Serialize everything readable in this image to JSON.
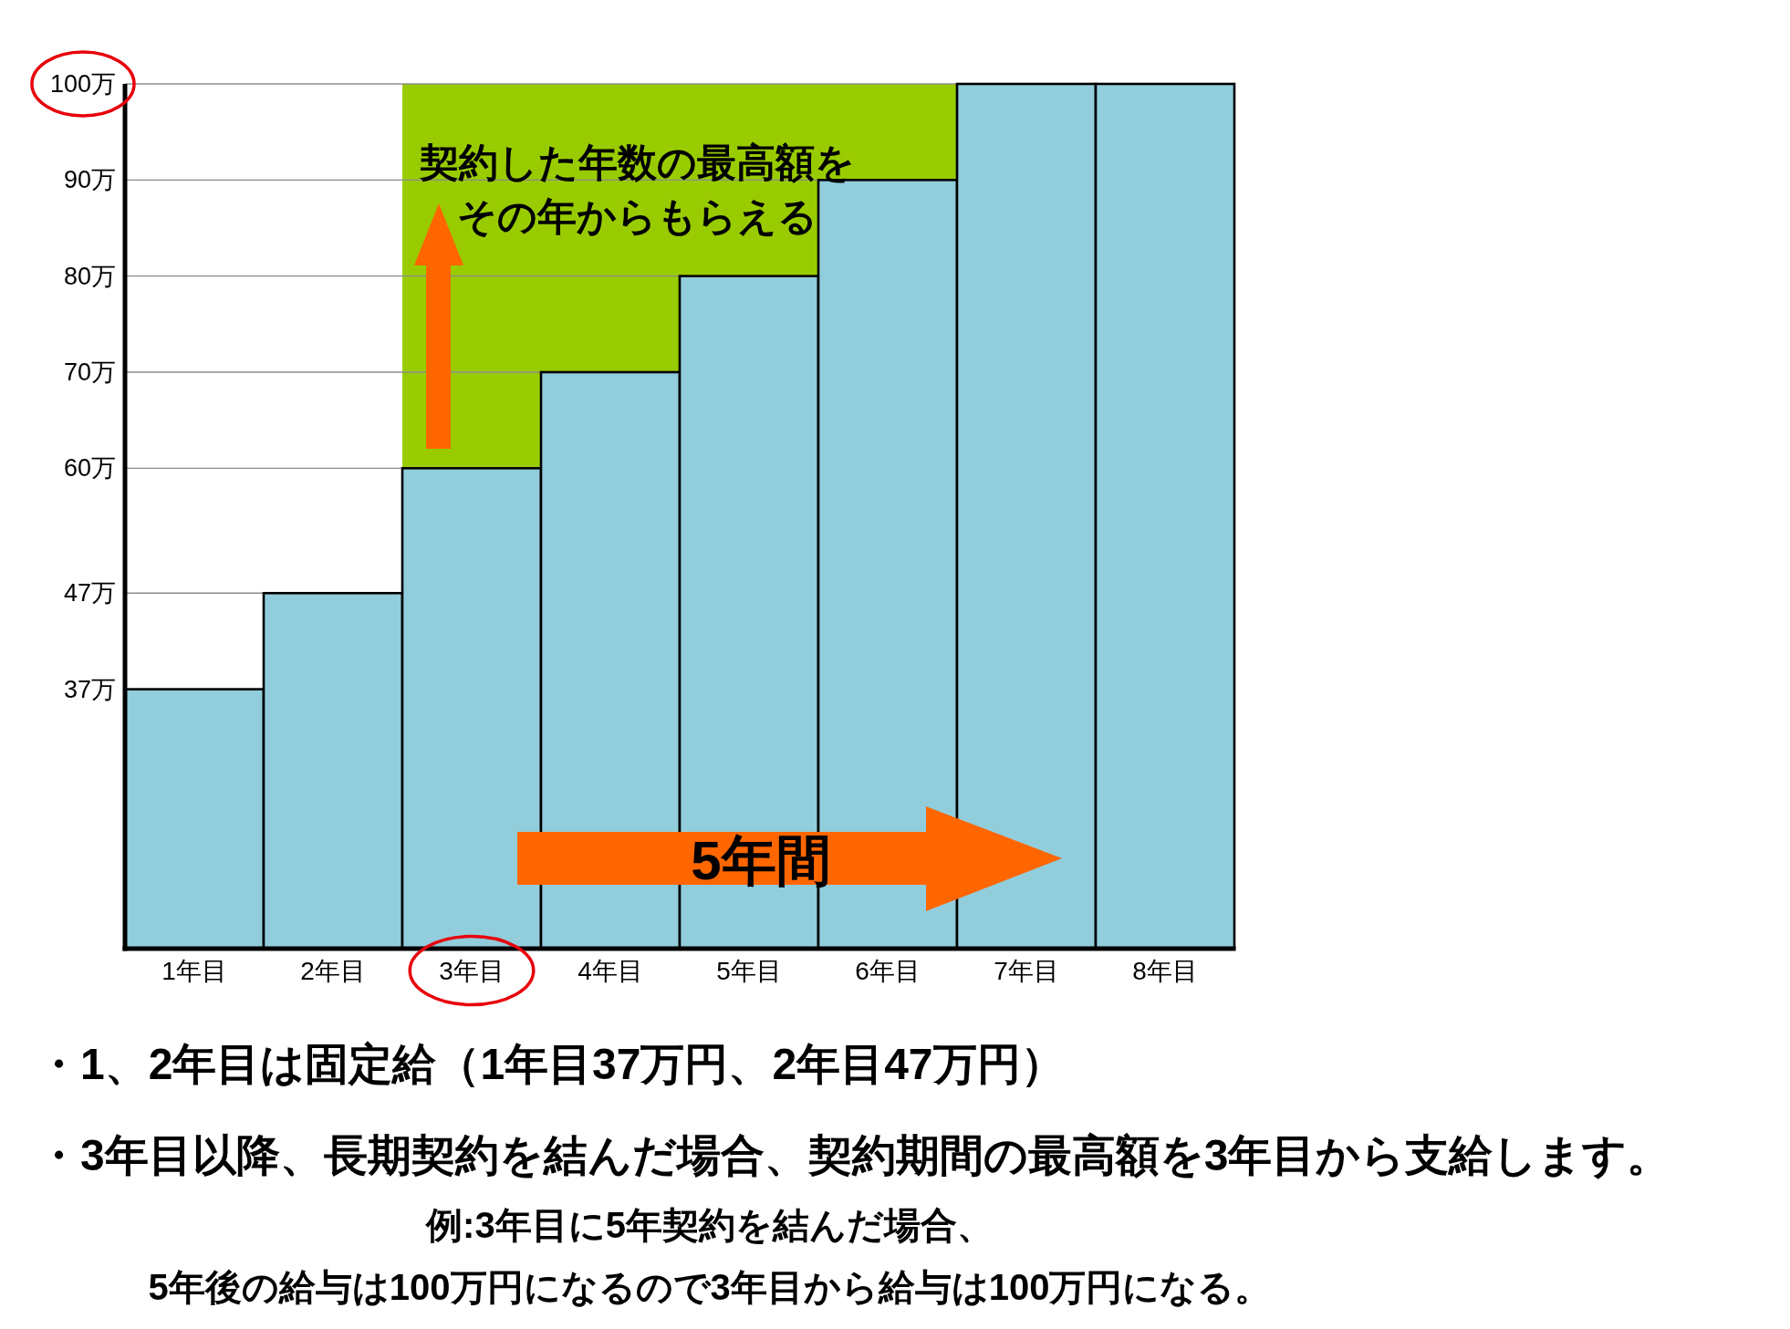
{
  "chart_data": {
    "type": "bar",
    "categories": [
      "1年目",
      "2年目",
      "3年目",
      "4年目",
      "5年目",
      "6年目",
      "7年目",
      "8年目"
    ],
    "stacked": true,
    "series": [
      {
        "color": "#92cddc",
        "values": [
          37,
          47,
          60,
          70,
          80,
          90,
          100,
          100
        ]
      },
      {
        "color": "#99cc00",
        "values": [
          null,
          null,
          40,
          30,
          20,
          10,
          null,
          null
        ]
      }
    ],
    "ylim": [
      10,
      100
    ],
    "yticks": [
      {
        "value": 37,
        "label": "37万"
      },
      {
        "value": 47,
        "label": "47万"
      },
      {
        "value": 60,
        "label": "60万"
      },
      {
        "value": 70,
        "label": "70万"
      },
      {
        "value": 80,
        "label": "80万"
      },
      {
        "value": 90,
        "label": "90万"
      },
      {
        "value": 100,
        "label": "100万"
      }
    ],
    "grid": "y",
    "annotations": [
      "契約した年数の最高額を",
      "その年からもらえる",
      "5年間",
      "・1、2年目は固定給（1年目37万円、2年目47万円）",
      "・3年目以降、長期契約を結んだ場合、契約期間の最高額を3年目から支給します。",
      "例:3年目に5年契約を結んだ場合、",
      "5年後の給与は100万円になるので3年目から給与は100万円になる。"
    ]
  }
}
